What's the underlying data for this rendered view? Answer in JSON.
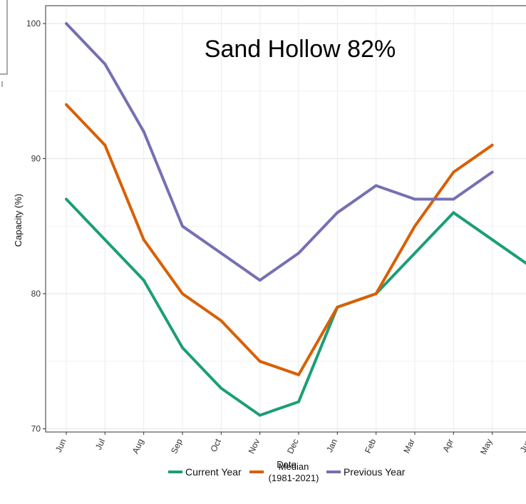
{
  "chart_data": {
    "type": "line",
    "categories": [
      "Jun",
      "Jul",
      "Aug",
      "Sep",
      "Oct",
      "Nov",
      "Dec",
      "Jan",
      "Feb",
      "Mar",
      "Apr",
      "May",
      "Jun"
    ],
    "ylabel": "Capacity (%)",
    "xlabel": "Date",
    "yticks": [
      70,
      80,
      90,
      100
    ],
    "ylim": [
      69.5,
      101.5
    ],
    "grid": true,
    "legend_position": "bottom",
    "annotation": "Sand Hollow 82%",
    "series": [
      {
        "name": "Current Year",
        "color": "#1b9e77",
        "values": [
          87,
          84,
          81,
          76,
          73,
          71,
          72,
          79,
          80,
          83,
          86,
          84,
          82
        ]
      },
      {
        "name": "Median (1981-2021)",
        "color": "#d95f02",
        "values": [
          94,
          91,
          84,
          80,
          78,
          75,
          74,
          79,
          80,
          85,
          89,
          91,
          null
        ]
      },
      {
        "name": "Previous Year",
        "color": "#7570b3",
        "values": [
          100,
          97,
          92,
          85,
          83,
          81,
          83,
          86,
          88,
          87,
          87,
          89,
          null
        ]
      }
    ],
    "legend": [
      {
        "label": "Current Year",
        "color": "#1b9e77"
      },
      {
        "label_line1": "Median",
        "label_line2": "(1981-2021)",
        "color": "#d95f02"
      },
      {
        "label": "Previous Year",
        "color": "#7570b3"
      }
    ]
  }
}
